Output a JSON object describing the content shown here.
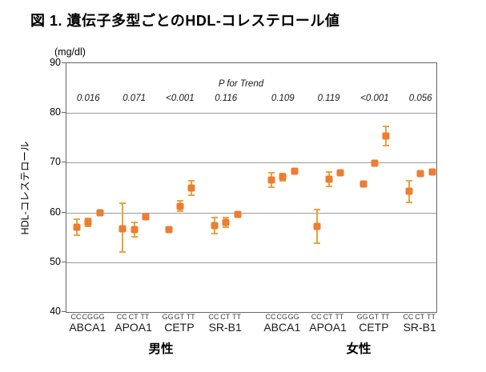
{
  "title": "図 1. 遺伝子多型ごとのHDL-コレステロール値",
  "chart_data": {
    "type": "scatter",
    "marker": "square",
    "title": "図 1. 遺伝子多型ごとのHDL-コレステロール値",
    "ylabel": "HDL-コレステロール",
    "y_unit": "(mg/dl)",
    "p_label": "P for Trend",
    "ylim": [
      40,
      90
    ],
    "yticks": [
      90,
      80,
      70,
      60,
      50,
      40
    ],
    "gridlines_at": [
      80,
      70,
      60,
      50
    ],
    "legend": "none",
    "colors": {
      "marker": "#ED7D31",
      "error_bar": "#E8A33D",
      "grid": "#9B9B9B",
      "axis_border": "#666666"
    },
    "sex_blocks": [
      {
        "label": "男性",
        "groups": [
          {
            "gene": "ABCA1",
            "p_for_trend": "0.016",
            "points": [
              {
                "genotype": "CC",
                "mean": 57.1,
                "ci": [
                  55.5,
                  58.7
                ]
              },
              {
                "genotype": "CG",
                "mean": 58.0,
                "ci": [
                  57.2,
                  58.8
                ]
              },
              {
                "genotype": "GG",
                "mean": 59.9,
                "ci": [
                  59.5,
                  60.3
                ]
              }
            ]
          },
          {
            "gene": "APOA1",
            "p_for_trend": "0.071",
            "points": [
              {
                "genotype": "CC",
                "mean": 56.8,
                "ci": [
                  52.0,
                  61.9
                ]
              },
              {
                "genotype": "CT",
                "mean": 56.6,
                "ci": [
                  55.1,
                  58.0
                ]
              },
              {
                "genotype": "TT",
                "mean": 59.2,
                "ci": [
                  58.8,
                  59.6
                ]
              }
            ]
          },
          {
            "gene": "CETP",
            "p_for_trend": "<0.001",
            "points": [
              {
                "genotype": "GG",
                "mean": 56.5,
                "ci": [
                  56.2,
                  56.8
                ]
              },
              {
                "genotype": "GT",
                "mean": 61.3,
                "ci": [
                  60.3,
                  62.3
                ]
              },
              {
                "genotype": "TT",
                "mean": 65.0,
                "ci": [
                  63.5,
                  66.4
                ]
              }
            ]
          },
          {
            "gene": "SR-B1",
            "p_for_trend": "0.116",
            "points": [
              {
                "genotype": "CC",
                "mean": 57.4,
                "ci": [
                  55.7,
                  58.9
                ]
              },
              {
                "genotype": "CT",
                "mean": 58.0,
                "ci": [
                  57.1,
                  59.0
                ]
              },
              {
                "genotype": "TT",
                "mean": 59.6,
                "ci": [
                  59.2,
                  60.0
                ]
              }
            ]
          }
        ]
      },
      {
        "label": "女性",
        "groups": [
          {
            "gene": "ABCA1",
            "p_for_trend": "0.109",
            "points": [
              {
                "genotype": "CC",
                "mean": 66.5,
                "ci": [
                  65.1,
                  68.0
                ]
              },
              {
                "genotype": "CG",
                "mean": 67.1,
                "ci": [
                  66.4,
                  67.8
                ]
              },
              {
                "genotype": "GG",
                "mean": 68.3,
                "ci": [
                  67.9,
                  68.7
                ]
              }
            ]
          },
          {
            "gene": "APOA1",
            "p_for_trend": "0.119",
            "points": [
              {
                "genotype": "CC",
                "mean": 57.2,
                "ci": [
                  53.9,
                  60.6
                ]
              },
              {
                "genotype": "CT",
                "mean": 66.7,
                "ci": [
                  65.3,
                  68.1
                ]
              },
              {
                "genotype": "TT",
                "mean": 68.0,
                "ci": [
                  67.6,
                  68.4
                ]
              }
            ]
          },
          {
            "gene": "CETP",
            "p_for_trend": "<0.001",
            "points": [
              {
                "genotype": "GG",
                "mean": 65.7,
                "ci": [
                  65.4,
                  66.0
                ]
              },
              {
                "genotype": "GT",
                "mean": 69.9,
                "ci": [
                  69.4,
                  70.4
                ]
              },
              {
                "genotype": "TT",
                "mean": 75.4,
                "ci": [
                  73.5,
                  77.3
                ]
              }
            ]
          },
          {
            "gene": "SR-B1",
            "p_for_trend": "0.056",
            "points": [
              {
                "genotype": "CC",
                "mean": 64.3,
                "ci": [
                  62.1,
                  66.3
                ]
              },
              {
                "genotype": "CT",
                "mean": 67.8,
                "ci": [
                  67.4,
                  68.2
                ]
              },
              {
                "genotype": "TT",
                "mean": 68.2,
                "ci": [
                  67.8,
                  68.6
                ]
              }
            ]
          }
        ]
      }
    ]
  }
}
